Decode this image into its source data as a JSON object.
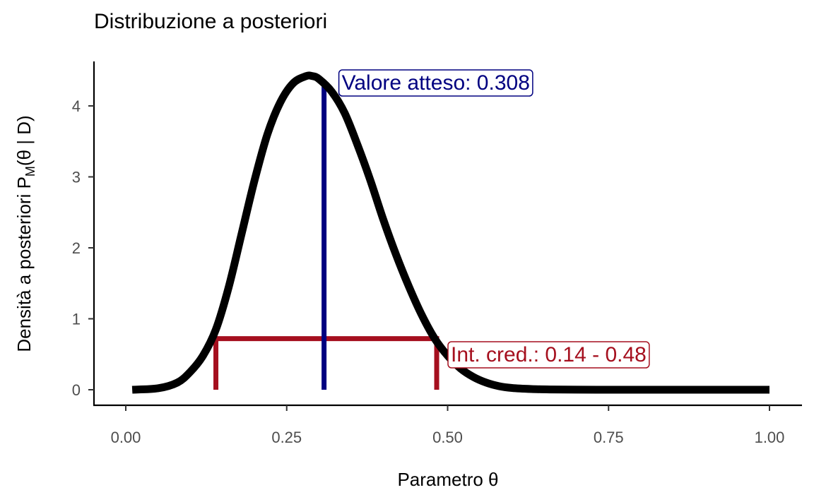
{
  "chart_data": {
    "type": "line",
    "title": "Distribuzione a posteriori",
    "xlabel": "Parametro θ",
    "ylabel": {
      "prefix": "Densità a posteriori P",
      "subscript": "M",
      "suffix": "(θ | D)"
    },
    "xlim": [
      0,
      1
    ],
    "ylim": [
      0,
      4.4
    ],
    "x_ticks": [
      0,
      0.25,
      0.5,
      0.75,
      1
    ],
    "x_tick_labels": [
      "0.00",
      "0.25",
      "0.50",
      "0.75",
      "1.00"
    ],
    "y_ticks": [
      0,
      1,
      2,
      3,
      4
    ],
    "y_tick_labels": [
      "0",
      "1",
      "2",
      "3",
      "4"
    ],
    "grid": false,
    "series": [
      {
        "x": [
          0.01,
          0.05,
          0.08,
          0.1,
          0.12,
          0.14,
          0.16,
          0.18,
          0.2,
          0.22,
          0.24,
          0.26,
          0.28,
          0.29,
          0.3,
          0.32,
          0.34,
          0.36,
          0.38,
          0.4,
          0.42,
          0.44,
          0.46,
          0.48,
          0.5,
          0.52,
          0.54,
          0.56,
          0.58,
          0.6,
          0.63,
          0.66,
          0.7,
          0.75,
          0.8,
          0.9,
          1.0
        ],
        "y": [
          0.0,
          0.02,
          0.1,
          0.25,
          0.48,
          0.85,
          1.45,
          2.2,
          2.95,
          3.6,
          4.05,
          4.32,
          4.42,
          4.42,
          4.38,
          4.2,
          3.9,
          3.45,
          2.95,
          2.4,
          1.9,
          1.45,
          1.05,
          0.72,
          0.48,
          0.3,
          0.18,
          0.1,
          0.05,
          0.025,
          0.01,
          0.004,
          0.001,
          0.0,
          0.0,
          0.0,
          0.0
        ],
        "color": "#000000"
      }
    ],
    "annotations": {
      "expected_value": {
        "x": 0.308,
        "label": "Valore atteso: 0.308",
        "color": "#000080"
      },
      "credible_interval": {
        "lower": 0.14,
        "upper": 0.483,
        "density": 0.72,
        "label": "Int. cred.: 0.14 - 0.48",
        "color": "#a50f1e"
      }
    }
  }
}
